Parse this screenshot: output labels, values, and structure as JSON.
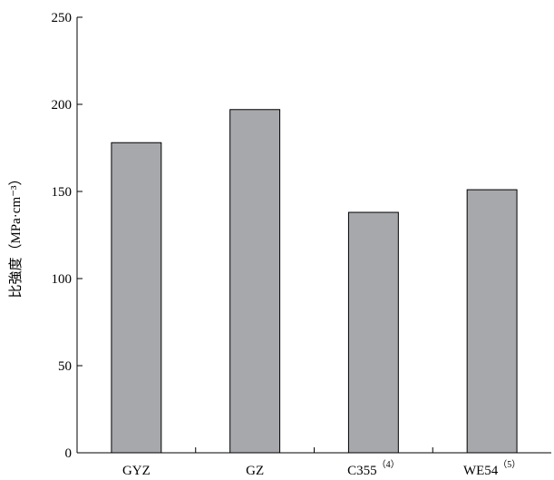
{
  "chart_data": {
    "type": "bar",
    "title": "",
    "xlabel": "",
    "ylabel": "比強度（MPa·cm⁻³）",
    "ylim": [
      0,
      250
    ],
    "yticks": [
      0,
      50,
      100,
      150,
      200,
      250
    ],
    "grid": false,
    "legend": "none",
    "bar_color": "#a7a8ac",
    "categories": [
      {
        "label": "GYZ",
        "sup": ""
      },
      {
        "label": "GZ",
        "sup": ""
      },
      {
        "label": "C355",
        "sup": "（4）"
      },
      {
        "label": "WE54",
        "sup": "（5）"
      }
    ],
    "values": [
      178,
      197,
      138,
      151
    ]
  }
}
